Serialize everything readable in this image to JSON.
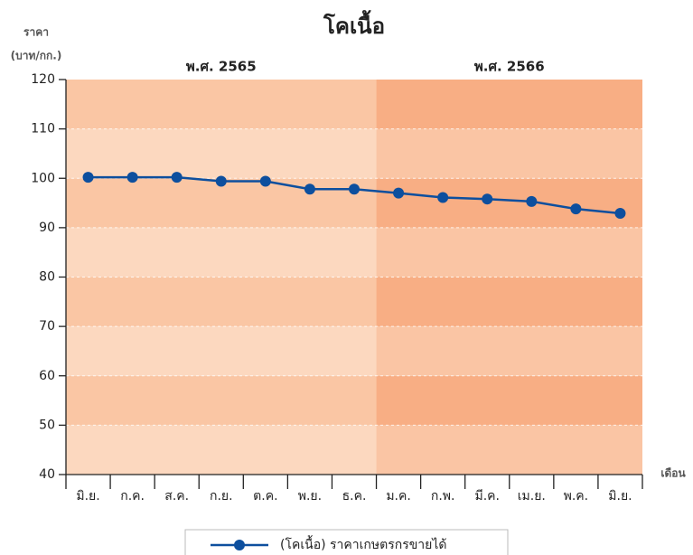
{
  "chart_data": {
    "type": "line",
    "title": "โคเนื้อ",
    "y_label": [
      "ราคา",
      "(บาท/กก.)"
    ],
    "x_label": "เดือน",
    "categories": [
      "มิ.ย.",
      "ก.ค.",
      "ส.ค.",
      "ก.ย.",
      "ต.ค.",
      "พ.ย.",
      "ธ.ค.",
      "ม.ค.",
      "ก.พ.",
      "มี.ค.",
      "เม.ย.",
      "พ.ค.",
      "มิ.ย."
    ],
    "series": [
      {
        "name": "(โคเนื้อ) ราคาเกษตรกรขายได้",
        "color": "#0d4f9e",
        "values": [
          100.2,
          100.2,
          100.2,
          99.4,
          99.4,
          97.8,
          97.8,
          97.0,
          96.1,
          95.8,
          95.3,
          93.8,
          92.9
        ]
      }
    ],
    "ylim": [
      40,
      120
    ],
    "yticks": [
      40,
      50,
      60,
      70,
      80,
      90,
      100,
      110,
      120
    ],
    "grid": true,
    "periods": [
      {
        "label": "พ.ศ. 2565",
        "from": 0,
        "to": 6,
        "colors": [
          "#fac6a4",
          "#fcd8bf"
        ]
      },
      {
        "label": "พ.ศ. 2566",
        "from": 7,
        "to": 12,
        "colors": [
          "#f8ae84",
          "#fac5a4"
        ]
      }
    ],
    "period_label_color": "#e8622a",
    "legend": "bottom"
  }
}
